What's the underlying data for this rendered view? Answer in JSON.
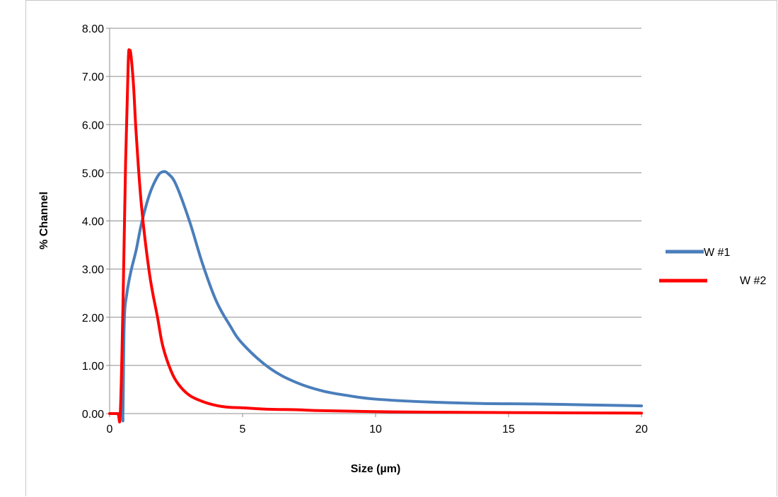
{
  "chart_data": {
    "type": "line",
    "title": "",
    "xlabel": "Size (µm)",
    "ylabel": "% Channel",
    "xlim": [
      0,
      20
    ],
    "ylim": [
      0,
      8
    ],
    "x_ticks": [
      "0",
      "5",
      "10",
      "15",
      "20"
    ],
    "y_ticks": [
      "0.00",
      "1.00",
      "2.00",
      "3.00",
      "4.00",
      "5.00",
      "6.00",
      "7.00",
      "8.00"
    ],
    "grid": "horizontal",
    "legend_position": "right",
    "series": [
      {
        "name": "W #1",
        "color": "#4a7ebb",
        "x": [
          0.0,
          0.45,
          0.5,
          0.55,
          0.65,
          0.8,
          1.0,
          1.2,
          1.5,
          1.8,
          2.0,
          2.2,
          2.5,
          3.0,
          3.5,
          4.0,
          4.5,
          5.0,
          6.0,
          7.0,
          8.0,
          9.0,
          10.0,
          12.0,
          14.0,
          16.0,
          18.0,
          20.0
        ],
        "y": [
          0.0,
          0.0,
          0.0,
          1.9,
          2.5,
          2.95,
          3.4,
          3.95,
          4.55,
          4.92,
          5.02,
          4.98,
          4.75,
          4.0,
          3.1,
          2.35,
          1.85,
          1.45,
          0.95,
          0.65,
          0.47,
          0.37,
          0.3,
          0.24,
          0.21,
          0.2,
          0.18,
          0.16
        ]
      },
      {
        "name": "W #2",
        "color": "#ff0000",
        "x": [
          0.0,
          0.3,
          0.4,
          0.5,
          0.6,
          0.7,
          0.75,
          0.8,
          0.9,
          1.0,
          1.2,
          1.5,
          1.8,
          2.0,
          2.3,
          2.6,
          3.0,
          3.5,
          4.0,
          4.5,
          5.0,
          6.0,
          7.0,
          8.0,
          10.0,
          12.0,
          15.0,
          20.0
        ],
        "y": [
          0.0,
          0.0,
          0.0,
          2.2,
          5.2,
          7.3,
          7.52,
          7.45,
          6.8,
          5.8,
          4.3,
          2.9,
          2.0,
          1.4,
          0.9,
          0.6,
          0.38,
          0.25,
          0.17,
          0.13,
          0.12,
          0.09,
          0.08,
          0.06,
          0.04,
          0.03,
          0.02,
          0.01
        ]
      }
    ]
  }
}
